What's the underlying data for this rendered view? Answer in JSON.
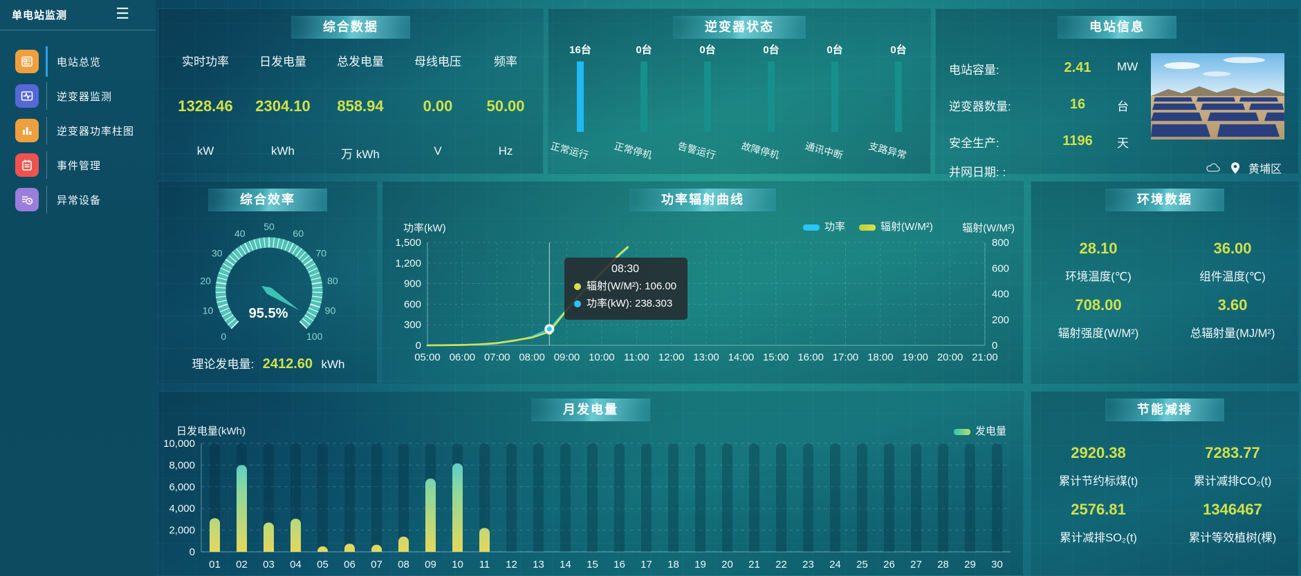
{
  "sidebar": {
    "title": "单电站监测",
    "menu_icon": "hamburger-menu-icon",
    "items": [
      {
        "label": "电站总览",
        "icon": "plant-overview-icon",
        "active": true
      },
      {
        "label": "逆变器监测",
        "icon": "inverter-monitor-icon",
        "active": false
      },
      {
        "label": "逆变器功率柱图",
        "icon": "inverter-power-bars-icon",
        "active": false
      },
      {
        "label": "事件管理",
        "icon": "event-management-icon",
        "active": false
      },
      {
        "label": "异常设备",
        "icon": "abnormal-device-icon",
        "active": false
      }
    ]
  },
  "colors": {
    "accent_value": "#d0e14b",
    "power_line": "#29c5f6",
    "radiation_line": "#d6e14d",
    "active_status_bar": "#1fb9f5",
    "idle_status_bar": "#15908d",
    "bar_gradient_bottom": "#e6d75c",
    "bar_gradient_top": "#3cc8e6"
  },
  "panels": {
    "summary": {
      "title": "综合数据",
      "metrics": [
        {
          "label": "实时功率",
          "value": "1328.46",
          "unit": "kW"
        },
        {
          "label": "日发电量",
          "value": "2304.10",
          "unit": "kWh"
        },
        {
          "label": "总发电量",
          "value": "858.94",
          "unit": "万 kWh"
        },
        {
          "label": "母线电压",
          "value": "0.00",
          "unit": "V"
        },
        {
          "label": "频率",
          "value": "50.00",
          "unit": "Hz"
        }
      ]
    },
    "inverter_status": {
      "title": "逆变器状态",
      "bars": [
        {
          "count": "16台",
          "label": "正常运行",
          "active": true
        },
        {
          "count": "0台",
          "label": "正常停机",
          "active": false
        },
        {
          "count": "0台",
          "label": "告警运行",
          "active": false
        },
        {
          "count": "0台",
          "label": "故障停机",
          "active": false
        },
        {
          "count": "0台",
          "label": "通讯中断",
          "active": false
        },
        {
          "count": "0台",
          "label": "支路异常",
          "active": false
        }
      ]
    },
    "station_info": {
      "title": "电站信息",
      "rows": [
        {
          "label": "电站容量:",
          "value": "2.41",
          "unit": "MW"
        },
        {
          "label": "逆变器数量:",
          "value": "16",
          "unit": "台"
        },
        {
          "label": "安全生产:",
          "value": "1196",
          "unit": "天"
        },
        {
          "label": "并网日期: :",
          "value": "",
          "unit": ""
        }
      ],
      "photo": "solar-farm-photo",
      "location": "黄埔区"
    },
    "efficiency": {
      "title": "综合效率",
      "gauge": {
        "value": 95.5,
        "display": "95.5%",
        "min": 0,
        "max": 100,
        "tick_labels": [
          0,
          10,
          20,
          30,
          40,
          50,
          60,
          70,
          80,
          90,
          100
        ]
      },
      "footer": {
        "label": "理论发电量:",
        "value": "2412.60",
        "unit": "kWh"
      }
    },
    "power_radiation": {
      "title": "功率辐射曲线"
    },
    "environment": {
      "title": "环境数据",
      "metrics": [
        {
          "value": "28.10",
          "label": "环境温度(℃)"
        },
        {
          "value": "36.00",
          "label": "组件温度(℃)"
        },
        {
          "value": "708.00",
          "label": "辐射强度(W/M²)"
        },
        {
          "value": "3.60",
          "label": "总辐射量(MJ/M²)"
        }
      ]
    },
    "monthly_generation": {
      "title": "月发电量"
    },
    "energy_saving": {
      "title": "节能减排",
      "metrics": [
        {
          "value": "2920.38",
          "label": "累计节约标煤(t)"
        },
        {
          "value": "7283.77",
          "label": "累计减排CO₂(t)"
        },
        {
          "value": "2576.81",
          "label": "累计减排SO₂(t)"
        },
        {
          "value": "1346467",
          "label": "累计等效植树(棵)"
        }
      ]
    }
  },
  "tooltip": {
    "time": "08:30",
    "rows": [
      {
        "color": "#d6e14d",
        "text": "辐射(W/M²): 106.00"
      },
      {
        "color": "#29c5f6",
        "text": "功率(kW): 238.303"
      }
    ]
  },
  "chart_data": [
    {
      "id": "power_radiation",
      "type": "line",
      "title": "功率辐射曲线",
      "x_ticks": [
        "05:00",
        "06:00",
        "07:00",
        "08:00",
        "09:00",
        "10:00",
        "11:00",
        "12:00",
        "13:00",
        "14:00",
        "15:00",
        "16:00",
        "17:00",
        "18:00",
        "19:00",
        "20:00",
        "21:00"
      ],
      "x_range": [
        5,
        21
      ],
      "y_left": {
        "label": "功率(kW)",
        "min": 0,
        "max": 1500,
        "ticks": [
          "0",
          "300",
          "600",
          "900",
          "1,200",
          "1,500"
        ]
      },
      "y_right": {
        "label": "辐射(W/M²)",
        "min": 0,
        "max": 800,
        "ticks": [
          "0",
          "200",
          "400",
          "600",
          "800"
        ]
      },
      "legend": [
        "功率",
        "辐射(W/M²)"
      ],
      "grid": true,
      "series": [
        {
          "name": "功率",
          "axis": "left",
          "color": "#29c5f6",
          "points": [
            [
              "05:00",
              0
            ],
            [
              "05:30",
              2
            ],
            [
              "06:00",
              5
            ],
            [
              "06:30",
              12
            ],
            [
              "07:00",
              30
            ],
            [
              "07:30",
              65
            ],
            [
              "08:00",
              125
            ],
            [
              "08:30",
              238.303
            ],
            [
              "09:00",
              520
            ],
            [
              "09:30",
              810
            ],
            [
              "10:00",
              1060
            ],
            [
              "10:30",
              1310
            ],
            [
              "10:45",
              1420
            ]
          ]
        },
        {
          "name": "辐射(W/M²)",
          "axis": "right",
          "color": "#d6e14d",
          "points": [
            [
              "05:00",
              0
            ],
            [
              "05:30",
              1
            ],
            [
              "06:00",
              3
            ],
            [
              "06:30",
              8
            ],
            [
              "07:00",
              18
            ],
            [
              "07:30",
              38
            ],
            [
              "08:00",
              60
            ],
            [
              "08:30",
              106
            ],
            [
              "09:00",
              275
            ],
            [
              "09:30",
              430
            ],
            [
              "10:00",
              565
            ],
            [
              "10:30",
              705
            ],
            [
              "10:45",
              765
            ]
          ]
        }
      ],
      "crosshair_x": "08:30",
      "tooltip": {
        "x": "08:30",
        "辐射(W/M²)": 106.0,
        "功率(kW)": 238.303
      }
    },
    {
      "id": "monthly_generation",
      "type": "bar",
      "title": "月发电量",
      "categories": [
        "01",
        "02",
        "03",
        "04",
        "05",
        "06",
        "07",
        "08",
        "09",
        "10",
        "11",
        "12",
        "13",
        "14",
        "15",
        "16",
        "17",
        "18",
        "19",
        "20",
        "21",
        "22",
        "23",
        "24",
        "25",
        "26",
        "27",
        "28",
        "29",
        "30"
      ],
      "values": [
        3100,
        8000,
        2700,
        3050,
        500,
        750,
        650,
        1400,
        6750,
        8150,
        2200,
        0,
        0,
        0,
        0,
        0,
        0,
        0,
        0,
        0,
        0,
        0,
        0,
        0,
        0,
        0,
        0,
        0,
        0,
        0
      ],
      "ylabel": "日发电量(kWh)",
      "ylim": [
        0,
        10000
      ],
      "yticks": [
        "0",
        "2,000",
        "4,000",
        "6,000",
        "8,000",
        "10,000"
      ],
      "legend": [
        "发电量"
      ],
      "grid": true
    }
  ]
}
